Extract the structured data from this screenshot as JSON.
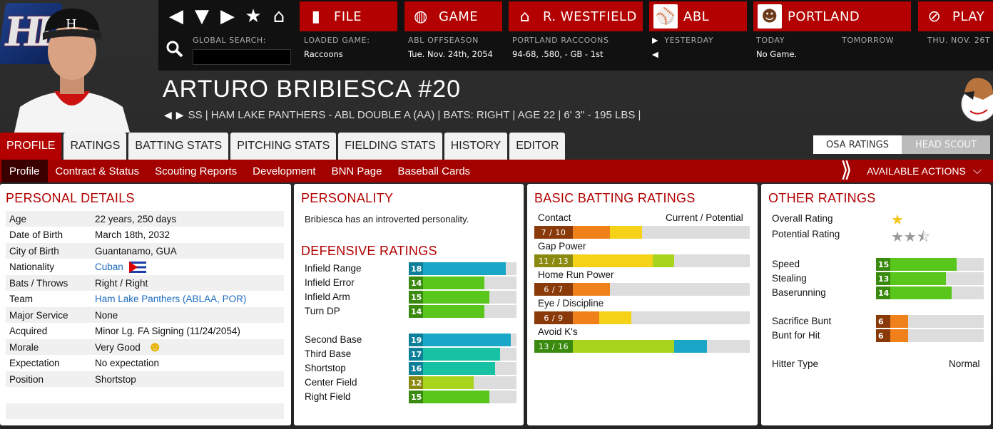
{
  "header": {
    "logo_text": "HL",
    "search_label": "GLOBAL SEARCH:",
    "search_value": "",
    "buttons": {
      "file": "FILE",
      "game": "GAME",
      "team": "R. WESTFIELD",
      "league": "ABL",
      "club": "PORTLAND",
      "play": "PLAY"
    },
    "loaded_game": {
      "label": "LOADED GAME:",
      "value": "Raccoons"
    },
    "season": {
      "label": "ABL OFFSEASON",
      "value": "Tue. Nov. 24th, 2054"
    },
    "team_info": {
      "label": "PORTLAND RACCOONS",
      "value": "94-68, .580, - GB - 1st"
    },
    "yesterday": "YESTERDAY",
    "today": {
      "label": "TODAY",
      "value": "No Game."
    },
    "tomorrow": "TOMORROW",
    "next_date": "THU. NOV. 26T"
  },
  "player": {
    "name": "ARTURO BRIBIESCA  #20",
    "info": "SS | HAM LAKE PANTHERS - ABL DOUBLE A (AA)  |  BATS: RIGHT  |  AGE 22  |  6' 3\" - 195 LBS  |"
  },
  "tabs": [
    "PROFILE",
    "RATINGS",
    "BATTING STATS",
    "PITCHING STATS",
    "FIELDING STATS",
    "HISTORY",
    "EDITOR"
  ],
  "osa_toggle": [
    "OSA RATINGS",
    "HEAD SCOUT"
  ],
  "subnav": [
    "Profile",
    "Contract & Status",
    "Scouting Reports",
    "Development",
    "BNN Page",
    "Baseball Cards"
  ],
  "available_actions": "AVAILABLE ACTIONS",
  "personal": {
    "title": "PERSONAL DETAILS",
    "rows": [
      {
        "k": "Age",
        "v": "22 years, 250 days"
      },
      {
        "k": "Date of Birth",
        "v": "March 18th, 2032"
      },
      {
        "k": "City of Birth",
        "v": "Guantanamo, GUA"
      },
      {
        "k": "Nationality",
        "v": "Cuban"
      },
      {
        "k": "Bats / Throws",
        "v": "Right / Right"
      },
      {
        "k": "Team",
        "v": "Ham Lake Panthers (ABLAA, POR)"
      },
      {
        "k": "Major Service",
        "v": "None"
      },
      {
        "k": "Acquired",
        "v": "Minor Lg. FA Signing (11/24/2054)"
      },
      {
        "k": "Morale",
        "v": "Very Good"
      },
      {
        "k": "Expectation",
        "v": "No expectation"
      },
      {
        "k": "Position",
        "v": "Shortstop"
      }
    ]
  },
  "personality": {
    "title": "PERSONALITY",
    "text": "Bribiesca has an introverted personality."
  },
  "defensive": {
    "title": "DEFENSIVE RATINGS",
    "infield": [
      {
        "name": "Infield Range",
        "value": 18
      },
      {
        "name": "Infield Error",
        "value": 14
      },
      {
        "name": "Infield Arm",
        "value": 15
      },
      {
        "name": "Turn DP",
        "value": 14
      }
    ],
    "positions": [
      {
        "name": "Second Base",
        "value": 19
      },
      {
        "name": "Third Base",
        "value": 17
      },
      {
        "name": "Shortstop",
        "value": 16
      },
      {
        "name": "Center Field",
        "value": 12
      },
      {
        "name": "Right Field",
        "value": 15
      }
    ]
  },
  "batting": {
    "title": "BASIC BATTING RATINGS",
    "legend": "Current / Potential",
    "ratings": [
      {
        "name": "Contact",
        "current": 7,
        "potential": 10,
        "text": "7 / 10"
      },
      {
        "name": "Gap Power",
        "current": 11,
        "potential": 13,
        "text": "11 / 13"
      },
      {
        "name": "Home Run Power",
        "current": 6,
        "potential": 7,
        "text": "6 / 7"
      },
      {
        "name": "Eye / Discipline",
        "current": 6,
        "potential": 9,
        "text": "6 / 9"
      },
      {
        "name": "Avoid K's",
        "current": 13,
        "potential": 16,
        "text": "13 / 16"
      }
    ]
  },
  "other": {
    "title": "OTHER RATINGS",
    "overall_label": "Overall Rating",
    "overall_stars": 1,
    "potential_label": "Potential Rating",
    "potential_stars": 2.5,
    "running": [
      {
        "name": "Speed",
        "value": 15
      },
      {
        "name": "Stealing",
        "value": 13
      },
      {
        "name": "Baserunning",
        "value": 14
      }
    ],
    "bunting": [
      {
        "name": "Sacrifice Bunt",
        "value": 6
      },
      {
        "name": "Bunt for Hit",
        "value": 6
      }
    ],
    "hitter_type_label": "Hitter Type",
    "hitter_type": "Normal"
  },
  "colors": {
    "red": "#b30000",
    "blue": "#1aa7c7",
    "teal": "#16c1a4",
    "green": "#58c61a",
    "lime": "#a8d41e",
    "orange": "#f0801a",
    "yellow": "#f5d217",
    "darkorange": "#c0550d"
  }
}
